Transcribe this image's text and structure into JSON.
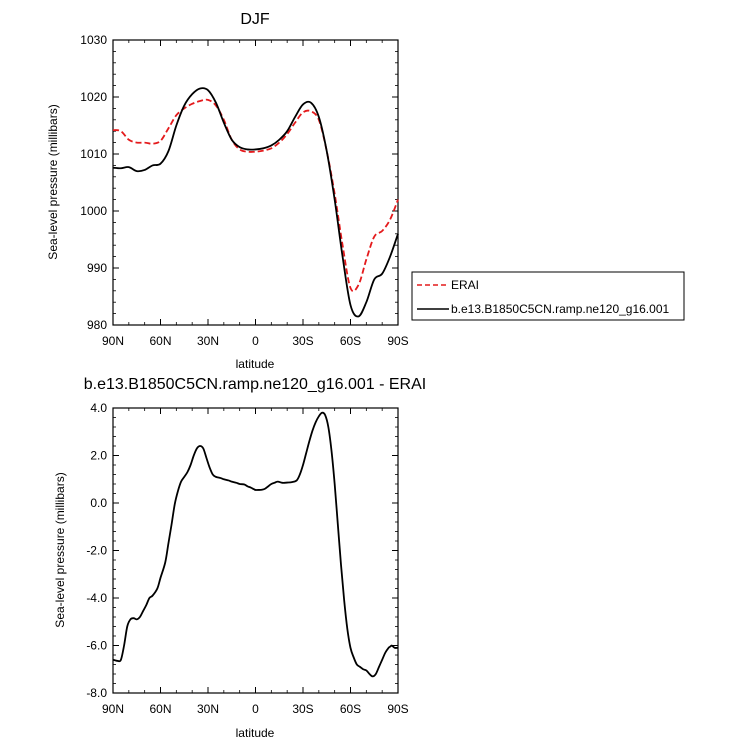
{
  "chart_data": [
    {
      "type": "line",
      "title": "DJF",
      "xlabel": "latitude",
      "ylabel": "Sea-level pressure (millibars)",
      "x_tick_labels": [
        "90N",
        "60N",
        "30N",
        "0",
        "30S",
        "60S",
        "90S"
      ],
      "x_tick_values": [
        90,
        60,
        30,
        0,
        -30,
        -60,
        -90
      ],
      "y_tick_labels": [
        "980",
        "990",
        "1000",
        "1010",
        "1020",
        "1030"
      ],
      "y_tick_values": [
        980,
        990,
        1000,
        1010,
        1020,
        1030
      ],
      "xlim": [
        90,
        -90
      ],
      "ylim": [
        980,
        1030
      ],
      "legend": {
        "position": "right",
        "entries": [
          "ERAI",
          "b.e13.B1850C5CN.ramp.ne120_g16.001"
        ]
      },
      "series": [
        {
          "name": "ERAI",
          "color": "#e41a1c",
          "dash": "dashed",
          "x": [
            90,
            85,
            80,
            75,
            70,
            65,
            60,
            55,
            50,
            45,
            40,
            35,
            30,
            25,
            20,
            15,
            10,
            5,
            0,
            -5,
            -10,
            -15,
            -20,
            -25,
            -30,
            -35,
            -40,
            -45,
            -50,
            -55,
            -60,
            -65,
            -70,
            -75,
            -80,
            -85,
            -90
          ],
          "y": [
            1014.2,
            1014,
            1012.5,
            1012,
            1012,
            1011.8,
            1012.3,
            1014.5,
            1016.8,
            1018,
            1018.8,
            1019.3,
            1019.5,
            1018.5,
            1016,
            1012.5,
            1010.8,
            1010.4,
            1010.4,
            1010.6,
            1011,
            1012,
            1013.5,
            1015.5,
            1017.3,
            1017.5,
            1016,
            1010.5,
            1003,
            994,
            986.5,
            987,
            991.5,
            995.5,
            996.5,
            998.5,
            1002
          ]
        },
        {
          "name": "b.e13.B1850C5CN.ramp.ne120_g16.001",
          "color": "#000000",
          "dash": "solid",
          "x": [
            90,
            85,
            80,
            75,
            70,
            65,
            60,
            55,
            50,
            45,
            40,
            35,
            30,
            25,
            20,
            15,
            10,
            5,
            0,
            -5,
            -10,
            -15,
            -20,
            -25,
            -30,
            -35,
            -40,
            -45,
            -50,
            -55,
            -60,
            -65,
            -70,
            -75,
            -80,
            -85,
            -90
          ],
          "y": [
            1007.6,
            1007.5,
            1007.7,
            1007,
            1007.2,
            1008,
            1008.3,
            1010.5,
            1015,
            1018.5,
            1020.5,
            1021.5,
            1021.2,
            1019,
            1015.5,
            1012.5,
            1011.2,
            1010.8,
            1010.8,
            1011,
            1011.5,
            1012.5,
            1014,
            1016.5,
            1018.7,
            1019,
            1016.5,
            1010.5,
            1002,
            992,
            983.5,
            981.5,
            984,
            988,
            989,
            992,
            996
          ]
        }
      ]
    },
    {
      "type": "line",
      "title": "b.e13.B1850C5CN.ramp.ne120_g16.001 - ERAI",
      "xlabel": "latitude",
      "ylabel": "Sea-level pressure (millibars)",
      "x_tick_labels": [
        "90N",
        "60N",
        "30N",
        "0",
        "30S",
        "60S",
        "90S"
      ],
      "x_tick_values": [
        90,
        60,
        30,
        0,
        -30,
        -60,
        -90
      ],
      "y_tick_labels": [
        "-8.0",
        "-6.0",
        "-4.0",
        "-2.0",
        "0.0",
        "2.0",
        "4.0"
      ],
      "y_tick_values": [
        -8,
        -6,
        -4,
        -2,
        0,
        2,
        4
      ],
      "xlim": [
        90,
        -90
      ],
      "ylim": [
        -8,
        4
      ],
      "series": [
        {
          "color": "#000000",
          "dash": "solid",
          "x": [
            90,
            87,
            85,
            83,
            81,
            79,
            77,
            75,
            73,
            71,
            69,
            67,
            65,
            62,
            60,
            57,
            55,
            53,
            51,
            49,
            47,
            45,
            43,
            41,
            39,
            37,
            35,
            33,
            31,
            29,
            27,
            25,
            22,
            20,
            17,
            15,
            12,
            10,
            7,
            5,
            3,
            1,
            0,
            -2,
            -4,
            -6,
            -8,
            -10,
            -12,
            -14,
            -17,
            -20,
            -23,
            -26,
            -28,
            -30,
            -32,
            -34,
            -36,
            -38,
            -40,
            -42,
            -44,
            -46,
            -48,
            -50,
            -52,
            -54,
            -56,
            -58,
            -60,
            -62,
            -64,
            -66,
            -68,
            -70,
            -72,
            -74,
            -76,
            -78,
            -80,
            -82,
            -84,
            -85,
            -86,
            -87,
            -88,
            -90
          ],
          "y": [
            -6.6,
            -6.65,
            -6.6,
            -6.0,
            -5.2,
            -4.9,
            -4.85,
            -4.9,
            -4.8,
            -4.55,
            -4.3,
            -4.0,
            -3.9,
            -3.6,
            -3.15,
            -2.5,
            -1.7,
            -0.9,
            -0.05,
            0.5,
            0.9,
            1.1,
            1.3,
            1.6,
            2.0,
            2.3,
            2.4,
            2.3,
            1.9,
            1.5,
            1.2,
            1.1,
            1.05,
            1.0,
            0.95,
            0.9,
            0.85,
            0.8,
            0.78,
            0.7,
            0.65,
            0.58,
            0.55,
            0.55,
            0.56,
            0.6,
            0.7,
            0.8,
            0.85,
            0.9,
            0.85,
            0.86,
            0.88,
            0.95,
            1.2,
            1.6,
            2.1,
            2.6,
            3.05,
            3.4,
            3.65,
            3.8,
            3.7,
            3.2,
            2.2,
            0.8,
            -0.9,
            -2.6,
            -4.1,
            -5.3,
            -6.1,
            -6.5,
            -6.8,
            -6.9,
            -7.0,
            -7.05,
            -7.2,
            -7.3,
            -7.2,
            -6.9,
            -6.6,
            -6.3,
            -6.1,
            -6.05,
            -6.0,
            -6.05,
            -6.1,
            -6.1
          ]
        }
      ]
    }
  ]
}
